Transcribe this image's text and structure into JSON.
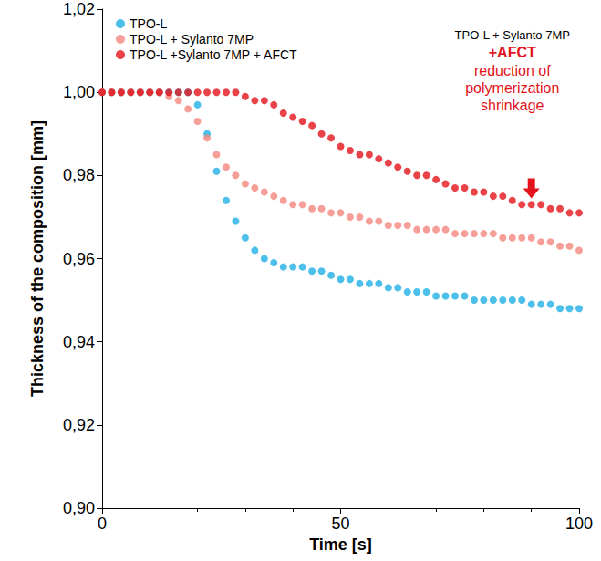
{
  "chart_data": {
    "type": "scatter",
    "x_label": "Time [s]",
    "y_label": "Thickness of the composition [mm]",
    "x": [
      0,
      2,
      4,
      6,
      8,
      10,
      12,
      14,
      16,
      18,
      20,
      22,
      24,
      26,
      28,
      30,
      32,
      34,
      36,
      38,
      40,
      42,
      44,
      46,
      48,
      50,
      52,
      54,
      56,
      58,
      60,
      62,
      64,
      66,
      68,
      70,
      72,
      74,
      76,
      78,
      80,
      82,
      84,
      86,
      88,
      90,
      92,
      94,
      96,
      98,
      100
    ],
    "series": [
      {
        "name": "TPO-L",
        "color": "#1fb0e6",
        "marker": "circle",
        "values": [
          1.0,
          1.0,
          1.0,
          1.0,
          1.0,
          1.0,
          1.0,
          1.0,
          1.0,
          1.0,
          0.997,
          0.99,
          0.981,
          0.974,
          0.969,
          0.965,
          0.962,
          0.96,
          0.959,
          0.958,
          0.958,
          0.958,
          0.957,
          0.957,
          0.956,
          0.955,
          0.955,
          0.954,
          0.954,
          0.954,
          0.953,
          0.953,
          0.952,
          0.952,
          0.952,
          0.951,
          0.951,
          0.951,
          0.951,
          0.95,
          0.95,
          0.95,
          0.95,
          0.95,
          0.95,
          0.949,
          0.949,
          0.949,
          0.948,
          0.948,
          0.948
        ]
      },
      {
        "name": "TPO-L + Sylanto 7MP",
        "color": "#f4877f",
        "marker": "circle",
        "values": [
          1.0,
          1.0,
          1.0,
          1.0,
          1.0,
          1.0,
          1.0,
          0.999,
          0.998,
          0.996,
          0.993,
          0.989,
          0.985,
          0.982,
          0.98,
          0.978,
          0.977,
          0.976,
          0.975,
          0.974,
          0.973,
          0.973,
          0.972,
          0.972,
          0.971,
          0.971,
          0.97,
          0.97,
          0.969,
          0.969,
          0.968,
          0.968,
          0.968,
          0.967,
          0.967,
          0.967,
          0.967,
          0.966,
          0.966,
          0.966,
          0.966,
          0.966,
          0.965,
          0.965,
          0.965,
          0.965,
          0.964,
          0.964,
          0.963,
          0.963,
          0.962
        ]
      },
      {
        "name": "TPO-L +Sylanto 7MP + AFCT",
        "color": "#e3141b",
        "marker": "circle",
        "values": [
          1.0,
          1.0,
          1.0,
          1.0,
          1.0,
          1.0,
          1.0,
          1.0,
          1.0,
          1.0,
          1.0,
          1.0,
          1.0,
          1.0,
          1.0,
          0.999,
          0.998,
          0.998,
          0.997,
          0.995,
          0.994,
          0.993,
          0.992,
          0.99,
          0.989,
          0.987,
          0.986,
          0.985,
          0.985,
          0.984,
          0.983,
          0.982,
          0.981,
          0.98,
          0.98,
          0.979,
          0.978,
          0.977,
          0.977,
          0.976,
          0.976,
          0.975,
          0.975,
          0.974,
          0.973,
          0.973,
          0.973,
          0.972,
          0.972,
          0.971,
          0.971
        ]
      }
    ],
    "xlim": [
      0,
      100
    ],
    "xticks": [
      0,
      50,
      100
    ],
    "ylim": [
      0.9,
      1.02
    ],
    "yticks": [
      {
        "value": 0.9,
        "label": "0,90"
      },
      {
        "value": 0.92,
        "label": "0,92"
      },
      {
        "value": 0.94,
        "label": "0,94"
      },
      {
        "value": 0.96,
        "label": "0,96"
      },
      {
        "value": 0.98,
        "label": "0,98"
      },
      {
        "value": 1.0,
        "label": "1,00"
      },
      {
        "value": 1.02,
        "label": "1,02"
      }
    ],
    "grid": false,
    "legend": "upper left",
    "annotations": [
      {
        "text": "TPO-L + Sylanto 7MP",
        "color": "#000000"
      },
      {
        "text": "+AFCT",
        "color": "#e3141b"
      },
      {
        "text": "reduction of\npolymerization\nshrinkage",
        "color": "#e3141b"
      }
    ]
  }
}
